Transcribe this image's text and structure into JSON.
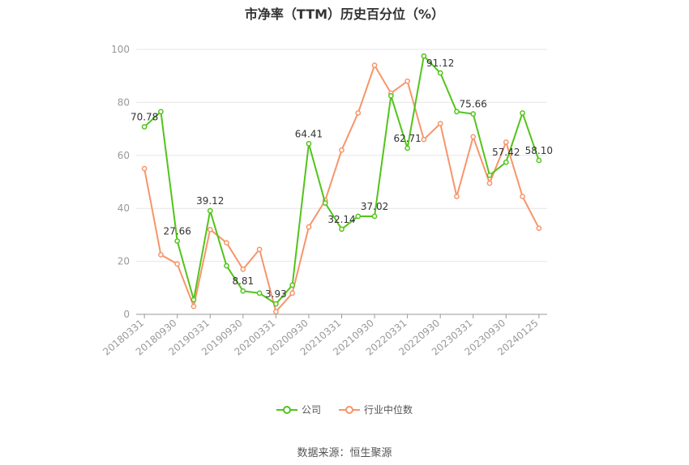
{
  "chart_data": {
    "type": "line",
    "title": "市净率（TTM）历史百分位（%）",
    "x": [
      "20180331",
      "20180630",
      "20180930",
      "20181231",
      "20190331",
      "20190630",
      "20190930",
      "20191231",
      "20200331",
      "20200630",
      "20200930",
      "20201231",
      "20210331",
      "20210630",
      "20210930",
      "20211231",
      "20220331",
      "20220630",
      "20220930",
      "20221231",
      "20230331",
      "20230630",
      "20230930",
      "20231231",
      "20240125"
    ],
    "x_tick_labels": [
      "20180331",
      "20180930",
      "20190331",
      "20190930",
      "20200331",
      "20200930",
      "20210331",
      "20210930",
      "20220331",
      "20220930",
      "20230331",
      "20230930",
      "20240125"
    ],
    "ylim": [
      0,
      100
    ],
    "y_ticks": [
      0,
      20,
      40,
      60,
      80,
      100
    ],
    "grid": true,
    "legend_position": "bottom",
    "series": [
      {
        "name": "公司",
        "color": "#52c41a",
        "values": [
          70.78,
          76.5,
          27.66,
          5.5,
          39.12,
          18.3,
          8.81,
          8.0,
          3.93,
          11.0,
          64.41,
          42.0,
          32.14,
          37.0,
          37.02,
          82.5,
          62.71,
          97.5,
          91.12,
          76.5,
          75.66,
          52.5,
          57.42,
          76.0,
          58.1
        ],
        "labels": {
          "0": "70.78",
          "2": "27.66",
          "4": "39.12",
          "6": "8.81",
          "8": "3.93",
          "10": "64.41",
          "12": "32.14",
          "14": "37.02",
          "16": "62.71",
          "18": "91.12",
          "20": "75.66",
          "22": "57.42",
          "24": "58.10"
        }
      },
      {
        "name": "行业中位数",
        "color": "#f7956a",
        "values": [
          55.0,
          22.5,
          19.0,
          3.0,
          32.0,
          27.0,
          17.0,
          24.5,
          1.0,
          8.0,
          33.0,
          43.0,
          62.0,
          76.0,
          94.0,
          83.5,
          88.0,
          66.0,
          72.0,
          44.5,
          67.0,
          49.5,
          65.0,
          44.5,
          32.5
        ]
      }
    ]
  },
  "legend": {
    "company": "公司",
    "industry": "行业中位数"
  },
  "source": "数据来源：恒生聚源"
}
